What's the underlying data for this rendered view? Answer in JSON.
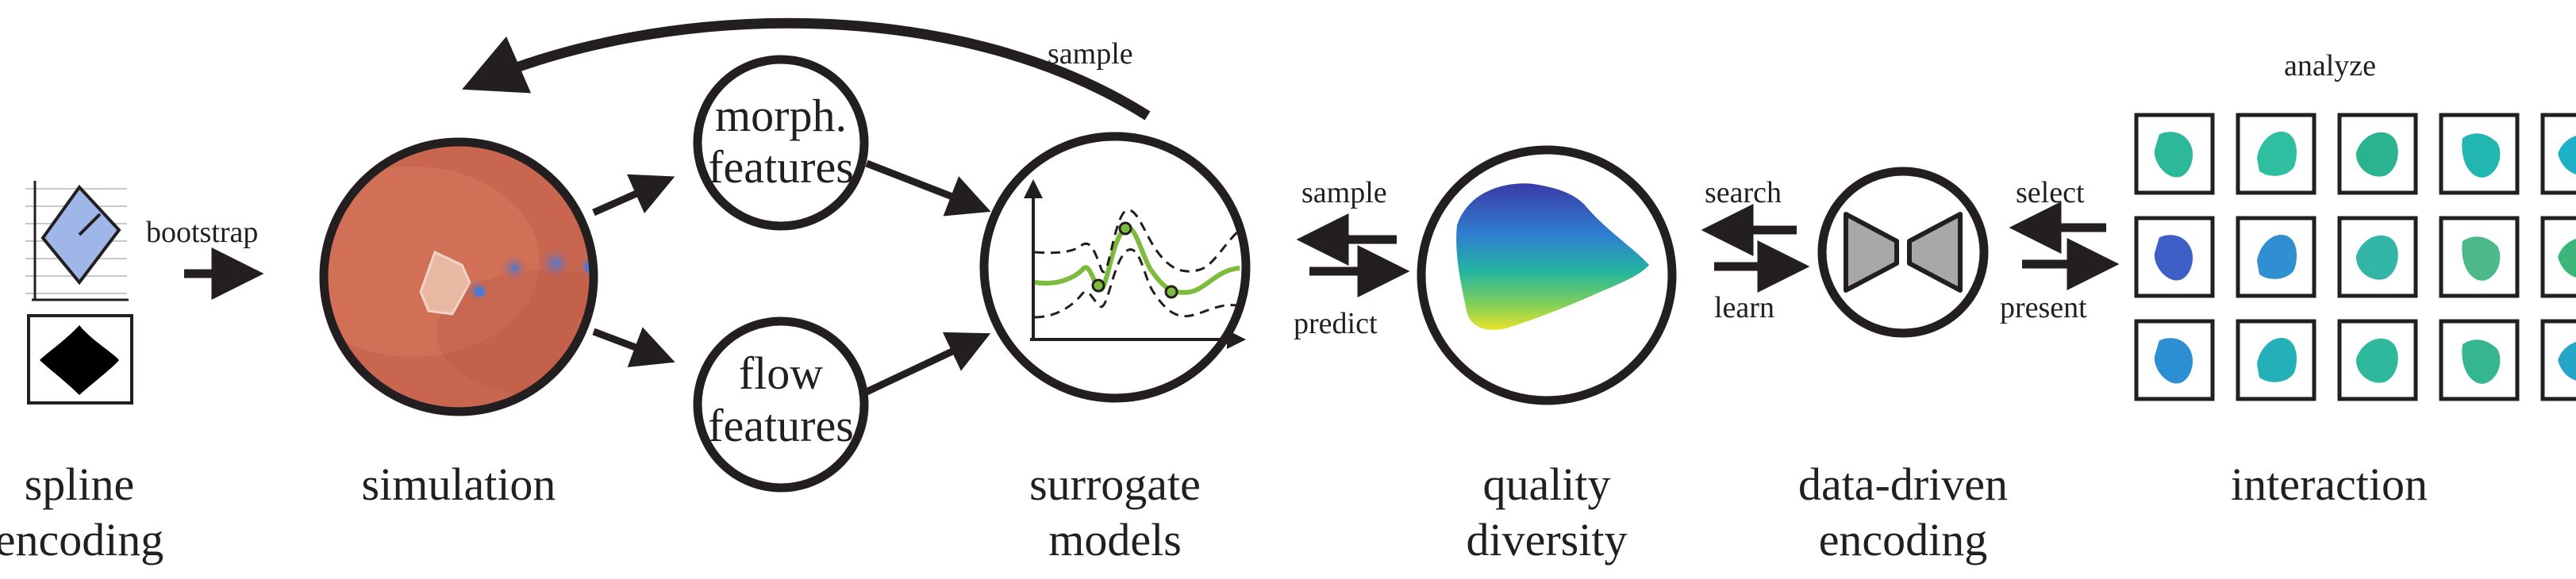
{
  "stages": {
    "spline_encoding": [
      "spline",
      "encoding"
    ],
    "simulation": "simulation",
    "surrogate_models": [
      "surrogate",
      "models"
    ],
    "quality_diversity": [
      "quality",
      "diversity"
    ],
    "data_driven_encoding": [
      "data-driven",
      "encoding"
    ],
    "interaction": "interaction"
  },
  "features": {
    "morph": [
      "morph.",
      "features"
    ],
    "flow": [
      "flow",
      "features"
    ]
  },
  "edges": {
    "bootstrap": "bootstrap",
    "sample_top": "sample",
    "sample_left": "sample",
    "predict": "predict",
    "search": "search",
    "learn": "learn",
    "select": "select",
    "present": "present",
    "analyze": "analyze"
  },
  "colors": {
    "ink": "#231f20",
    "sim_bg": "#c9664f",
    "vortex": "#4d78d6",
    "surrogate_mean": "#7dbb3c",
    "encoder_fill": "#a8a8a8"
  },
  "shape_grid": [
    [
      "#2db89a",
      "#2fbfa0",
      "#29b38f",
      "#22b6b0",
      "#1fb0c8"
    ],
    [
      "#3e5fc6",
      "#2f8fd0",
      "#33b5a8",
      "#4db88a",
      "#3bb57a"
    ],
    [
      "#2c8fd4",
      "#23b0b8",
      "#2fb99c",
      "#35b691",
      "#26a6c6"
    ]
  ]
}
